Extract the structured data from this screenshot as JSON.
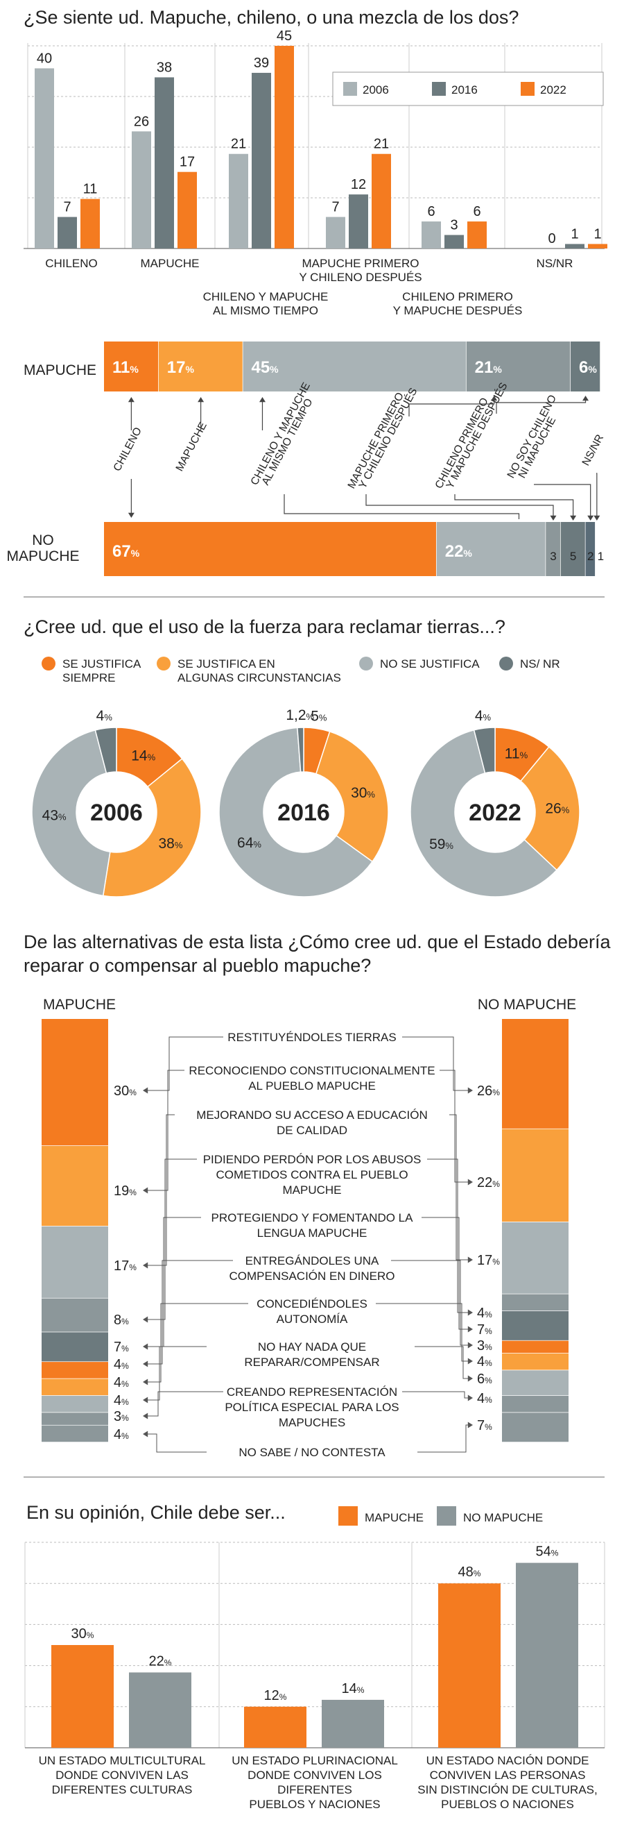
{
  "colors": {
    "c2006": "#a9b3b6",
    "c2016": "#6c7a7e",
    "c2022": "#f47b20",
    "mapuche": "#f47b20",
    "no_mapuche": "#8c979a",
    "justifica_siempre": "#f47b20",
    "justifica_algunas": "#f9a03c",
    "no_justifica": "#a9b3b6",
    "nsnr": "#6c7a7e"
  },
  "chart_data": [
    {
      "type": "bar",
      "title": "¿Se siente ud. Mapuche, chileno, o una mezcla de los dos?",
      "categories": [
        "CHILENO",
        "MAPUCHE",
        "CHILENO Y MAPUCHE AL MISMO TIEMPO",
        "MAPUCHE PRIMERO Y CHILENO DESPUÉS",
        "CHILENO PRIMERO Y MAPUCHE DESPUÉS",
        "NS/NR"
      ],
      "category_lines": [
        [
          "CHILENO"
        ],
        [
          "MAPUCHE"
        ],
        [
          "CHILENO Y MAPUCHE",
          "AL MISMO TIEMPO"
        ],
        [
          "MAPUCHE PRIMERO",
          "Y CHILENO DESPUÉS"
        ],
        [
          "CHILENO PRIMERO",
          "Y MAPUCHE DESPUÉS"
        ],
        [
          "NS/NR"
        ]
      ],
      "series": [
        {
          "name": "2006",
          "values": [
            40,
            26,
            21,
            7,
            6,
            0
          ]
        },
        {
          "name": "2016",
          "values": [
            7,
            38,
            39,
            12,
            3,
            1
          ]
        },
        {
          "name": "2022",
          "values": [
            11,
            17,
            45,
            21,
            6,
            1
          ]
        }
      ],
      "ylim": [
        0,
        45
      ],
      "legend": "top-right"
    },
    {
      "type": "bar",
      "stacked": true,
      "rows": [
        {
          "label": "MAPUCHE",
          "label_lines": [
            "MAPUCHE"
          ],
          "values": [
            11,
            17,
            45,
            21,
            6
          ],
          "labels": [
            "11",
            "17",
            "45",
            "21",
            "6"
          ]
        },
        {
          "label": "NO MAPUCHE",
          "label_lines": [
            "NO",
            "MAPUCHE"
          ],
          "values": [
            67,
            22,
            3,
            5,
            2,
            1
          ],
          "labels": [
            "67",
            "22",
            "3",
            "5",
            "2",
            "1"
          ]
        }
      ],
      "segment_names": [
        [
          "CHILENO"
        ],
        [
          "MAPUCHE"
        ],
        [
          "CHILENO Y MAPUCHE",
          "AL MISMO TIEMPO"
        ],
        [
          "MAPUCHE PRIMERO",
          "Y CHILENO DESPUÉS"
        ],
        [
          "CHILENO PRIMERO",
          "Y MAPUCHE DESPUÉS"
        ],
        [
          "NO SOY CHILENO",
          "NI MAPUCHE"
        ],
        [
          "NS/NR"
        ]
      ],
      "pct_sign": "%"
    },
    {
      "type": "pie",
      "title": "¿Cree ud. que el uso de la fuerza para reclamar tierras...?",
      "legend": [
        {
          "lines": [
            "SE JUSTIFICA",
            "SIEMPRE"
          ],
          "color": "#f47b20"
        },
        {
          "lines": [
            "SE JUSTIFICA EN",
            "ALGUNAS CIRCUNSTANCIAS"
          ],
          "color": "#f9a03c"
        },
        {
          "lines": [
            "NO SE JUSTIFICA"
          ],
          "color": "#a9b3b6"
        },
        {
          "lines": [
            "NS/ NR"
          ],
          "color": "#6c7a7e"
        }
      ],
      "donuts": [
        {
          "year": "2006",
          "values": [
            14,
            38,
            43,
            4
          ],
          "labels": [
            "14",
            "38",
            "43",
            "4"
          ]
        },
        {
          "year": "2016",
          "values": [
            5,
            30,
            64,
            1.2
          ],
          "labels": [
            "5",
            "30",
            "64",
            "1,2"
          ]
        },
        {
          "year": "2022",
          "values": [
            11,
            26,
            59,
            4
          ],
          "labels": [
            "11",
            "26",
            "59",
            "4"
          ]
        }
      ]
    },
    {
      "type": "bar",
      "stacked": true,
      "title_lines": [
        "De las alternativas de esta lista ¿Cómo cree ud. que el Estado debería",
        "reparar o compensar al pueblo mapuche?"
      ],
      "left_title": "MAPUCHE",
      "right_title": "NO MAPUCHE",
      "items": [
        {
          "lines": [
            "RESTITUYÉNDOLES TIERRAS"
          ],
          "mapuche": 30,
          "no_mapuche": 26
        },
        {
          "lines": [
            "RECONOCIENDO CONSTITUCIONALMENTE",
            "AL PUEBLO MAPUCHE"
          ],
          "mapuche": 19,
          "no_mapuche": 22
        },
        {
          "lines": [
            "MEJORANDO SU ACCESO A EDUCACIÓN",
            "DE CALIDAD"
          ],
          "mapuche": 17,
          "no_mapuche": 17
        },
        {
          "lines": [
            "PIDIENDO PERDÓN POR LOS ABUSOS",
            "COMETIDOS CONTRA EL PUEBLO",
            "MAPUCHE"
          ],
          "mapuche": 8,
          "no_mapuche": 4
        },
        {
          "lines": [
            "PROTEGIENDO Y FOMENTANDO LA",
            "LENGUA MAPUCHE"
          ],
          "mapuche": 7,
          "no_mapuche": 7
        },
        {
          "lines": [
            "ENTREGÁNDOLES UNA",
            "COMPENSACIÓN EN DINERO"
          ],
          "mapuche": 4,
          "no_mapuche": 3
        },
        {
          "lines": [
            "CONCEDIÉNDOLES",
            "AUTONOMÍA"
          ],
          "mapuche": 4,
          "no_mapuche": 4
        },
        {
          "lines": [
            "NO HAY NADA QUE",
            "REPARAR/COMPENSAR"
          ],
          "mapuche": 4,
          "no_mapuche": 6
        },
        {
          "lines": [
            "CREANDO REPRESENTACIÓN",
            "POLÍTICA ESPECIAL PARA LOS",
            "MAPUCHES"
          ],
          "mapuche": 3,
          "no_mapuche": 4
        },
        {
          "lines": [
            "NO SABE / NO CONTESTA"
          ],
          "mapuche": 4,
          "no_mapuche": 7
        }
      ]
    },
    {
      "type": "bar",
      "title": "En su opinión, Chile debe ser...",
      "legend": [
        {
          "name": "MAPUCHE",
          "color": "#f47b20"
        },
        {
          "name": "NO MAPUCHE",
          "color": "#8c979a"
        }
      ],
      "categories": [
        "UN ESTADO MULTICULTURAL DONDE CONVIVEN LAS DIFERENTES CULTURAS",
        "UN ESTADO PLURINACIONAL DONDE CONVIVEN LOS DIFERENTES PUEBLOS Y NACIONES",
        "UN ESTADO NACIÓN DONDE CONVIVEN LAS PERSONAS SIN DISTINCIÓN DE CULTURAS, PUEBLOS O NACIONES"
      ],
      "category_lines": [
        [
          "UN ESTADO MULTICULTURAL",
          "DONDE CONVIVEN LAS",
          "DIFERENTES CULTURAS"
        ],
        [
          "UN ESTADO PLURINACIONAL",
          "DONDE CONVIVEN LOS",
          "DIFERENTES",
          "PUEBLOS Y NACIONES"
        ],
        [
          "UN ESTADO NACIÓN DONDE",
          "CONVIVEN LAS PERSONAS",
          "SIN DISTINCIÓN DE CULTURAS,",
          "PUEBLOS O NACIONES"
        ]
      ],
      "series": [
        {
          "name": "MAPUCHE",
          "values": [
            30,
            12,
            48
          ]
        },
        {
          "name": "NO MAPUCHE",
          "values": [
            22,
            14,
            54
          ]
        }
      ],
      "ylim": [
        0,
        60
      ]
    }
  ]
}
